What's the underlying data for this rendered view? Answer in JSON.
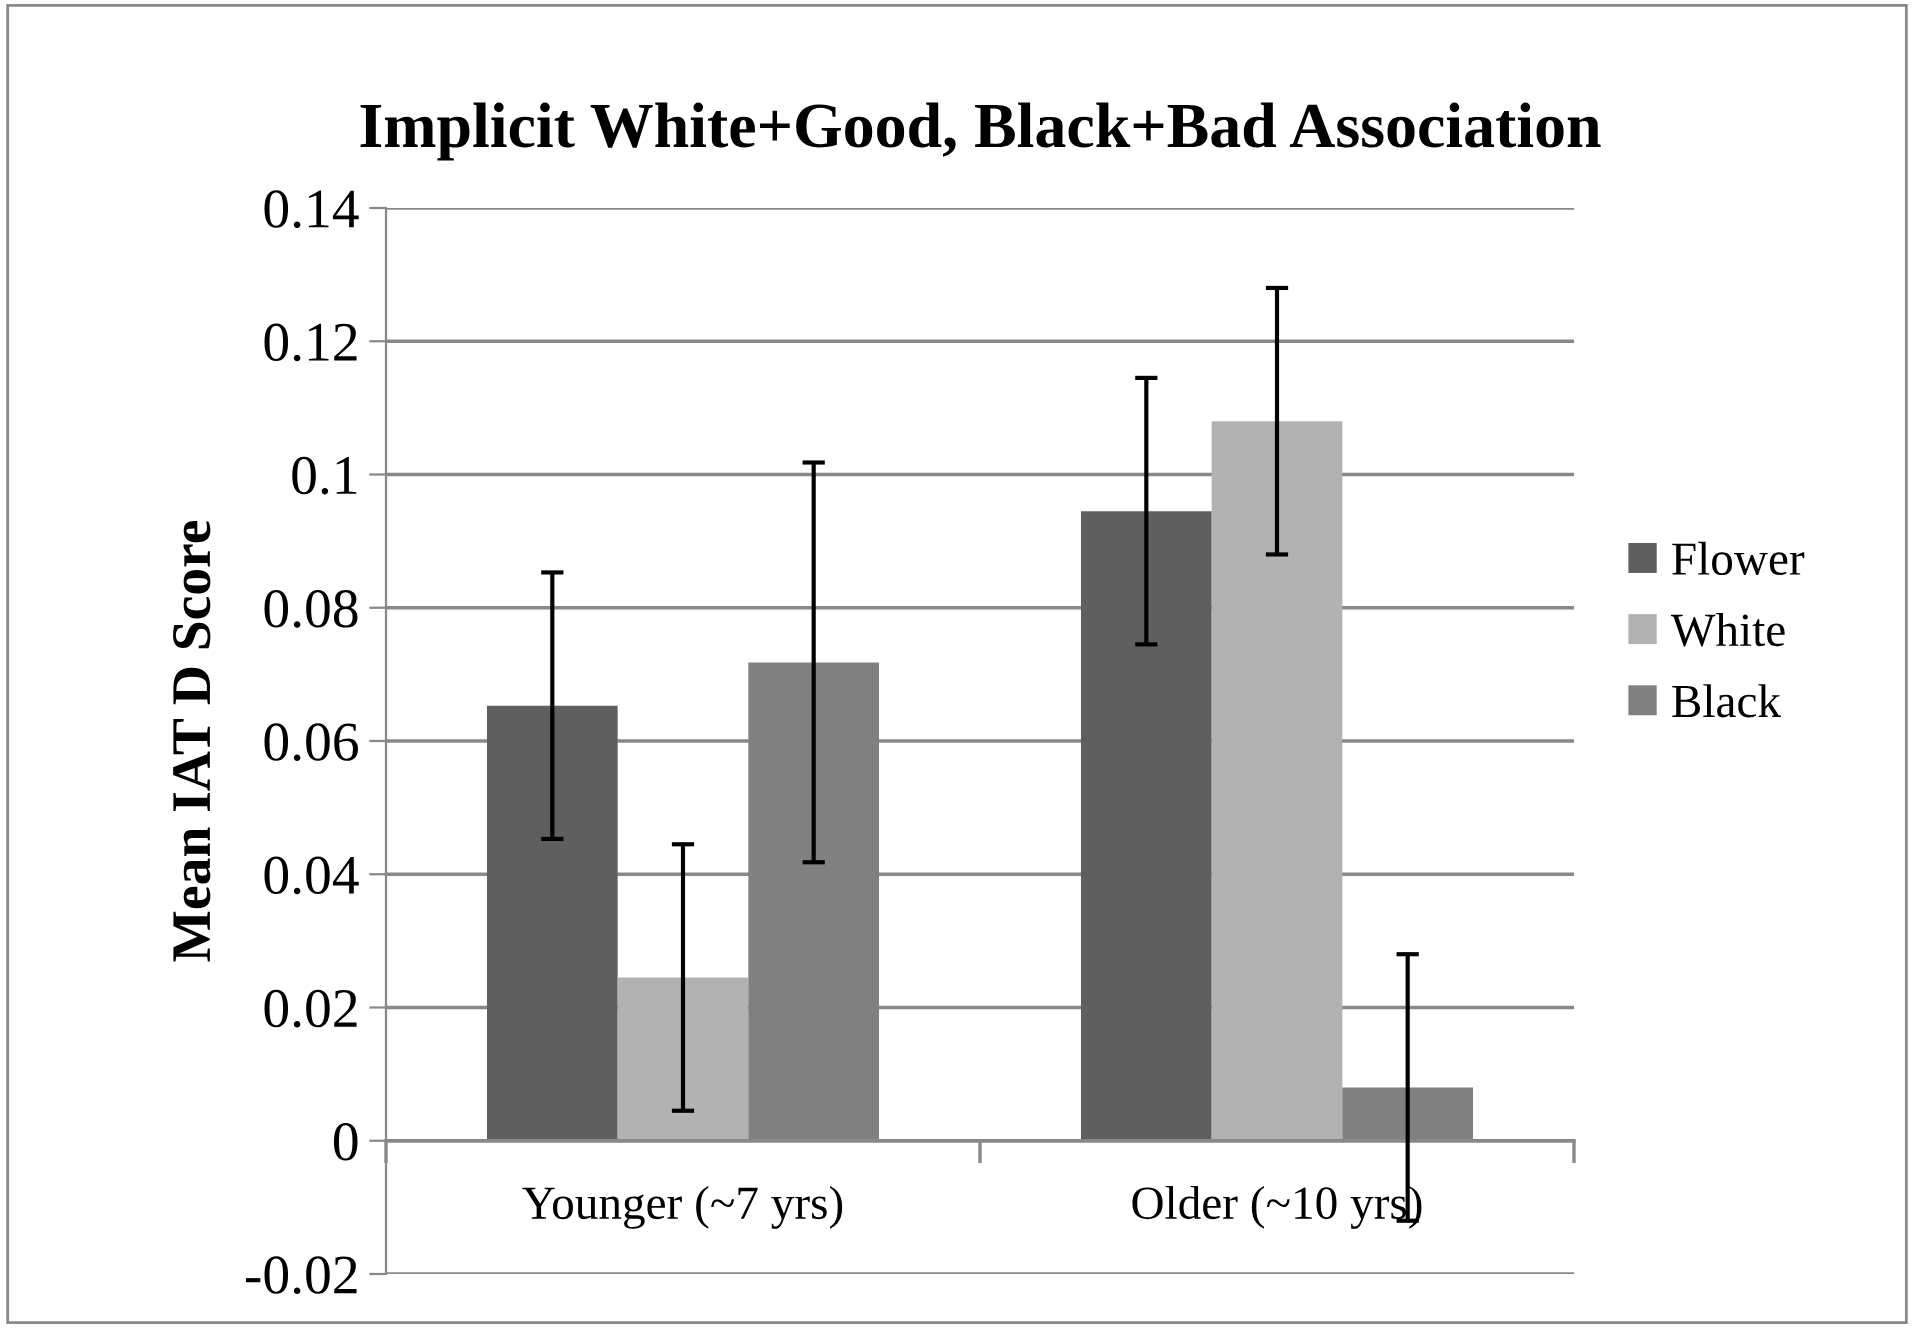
{
  "chart_data": {
    "type": "bar",
    "title": "Implicit White+Good, Black+Bad Association",
    "ylabel": "Mean IAT D Score",
    "categories": [
      "Younger (~7 yrs)",
      "Older (~10 yrs)"
    ],
    "series": [
      {
        "name": "Flower",
        "color": "#5f5f5f",
        "values": [
          0.0653,
          0.0945
        ],
        "errors": [
          0.02,
          0.02
        ]
      },
      {
        "name": "White",
        "color": "#b2b2b2",
        "values": [
          0.0245,
          0.108
        ],
        "errors": [
          0.02,
          0.02
        ]
      },
      {
        "name": "Black",
        "color": "#808080",
        "values": [
          0.0718,
          0.008
        ],
        "errors": [
          0.03,
          0.02
        ]
      }
    ],
    "ylim": [
      -0.02,
      0.14
    ],
    "yticks": [
      {
        "value": -0.02,
        "label": "-0.02"
      },
      0,
      0.02,
      0.04,
      0.06,
      0.08,
      0.1,
      0.12,
      0.14
    ],
    "grid": "y",
    "legend": "right"
  }
}
